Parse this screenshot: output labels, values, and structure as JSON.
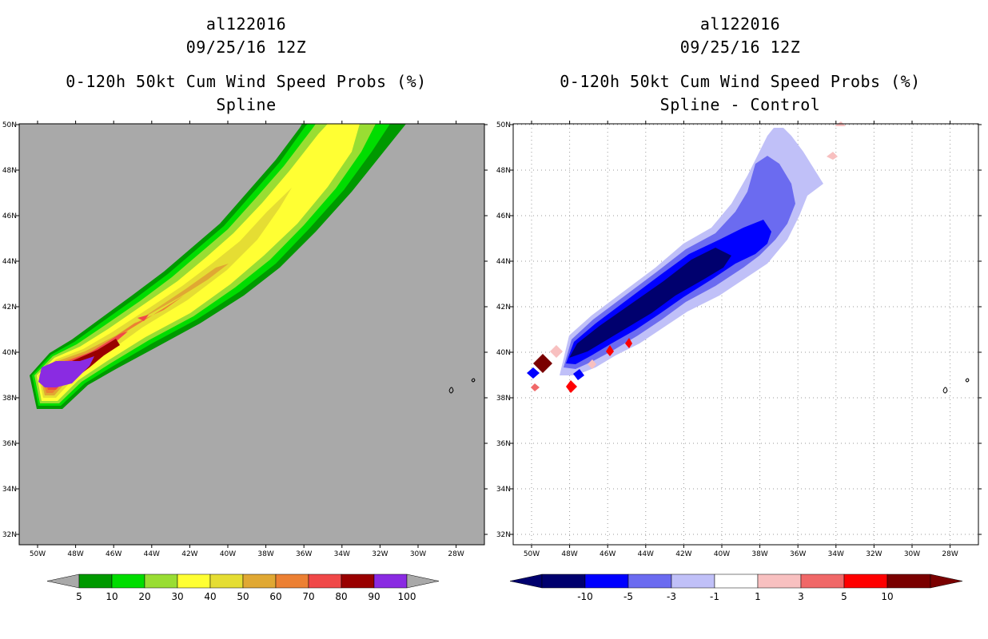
{
  "left_panel": {
    "storm_id": "al122016",
    "datetime": "09/25/16 12Z",
    "product": "0-120h 50kt Cum Wind Speed Probs (%)",
    "subtitle": "Spline",
    "background_color": "#a9a9a9"
  },
  "right_panel": {
    "storm_id": "al122016",
    "datetime": "09/25/16 12Z",
    "product": "0-120h 50kt Cum Wind Speed Probs (%)",
    "subtitle": "Spline - Control",
    "background_color": "#ffffff"
  },
  "axes": {
    "lat_labels": [
      "50N",
      "48N",
      "46N",
      "44N",
      "42N",
      "40N",
      "38N",
      "36N",
      "34N",
      "32N"
    ],
    "lon_labels": [
      "50W",
      "48W",
      "46W",
      "44W",
      "42W",
      "40W",
      "38W",
      "36W",
      "34W",
      "32W",
      "30W",
      "28W"
    ]
  },
  "colorbar_left": {
    "labels": [
      "5",
      "10",
      "20",
      "30",
      "40",
      "50",
      "60",
      "70",
      "80",
      "90",
      "100"
    ],
    "colors": [
      "#009900",
      "#00dd00",
      "#99dd33",
      "#ffff33",
      "#e5dd33",
      "#e0a833",
      "#ec8033",
      "#f04848",
      "#990000",
      "#8a2be2"
    ],
    "end_color": "#a9a9a9"
  },
  "colorbar_right": {
    "labels": [
      "-10",
      "-5",
      "-3",
      "-1",
      "1",
      "3",
      "5",
      "10"
    ],
    "colors": [
      "#00006e",
      "#0000ff",
      "#6b6bf0",
      "#c0c0f8",
      "#ffffff",
      "#f8c0c0",
      "#f06868",
      "#ff0000",
      "#7a0000"
    ]
  }
}
